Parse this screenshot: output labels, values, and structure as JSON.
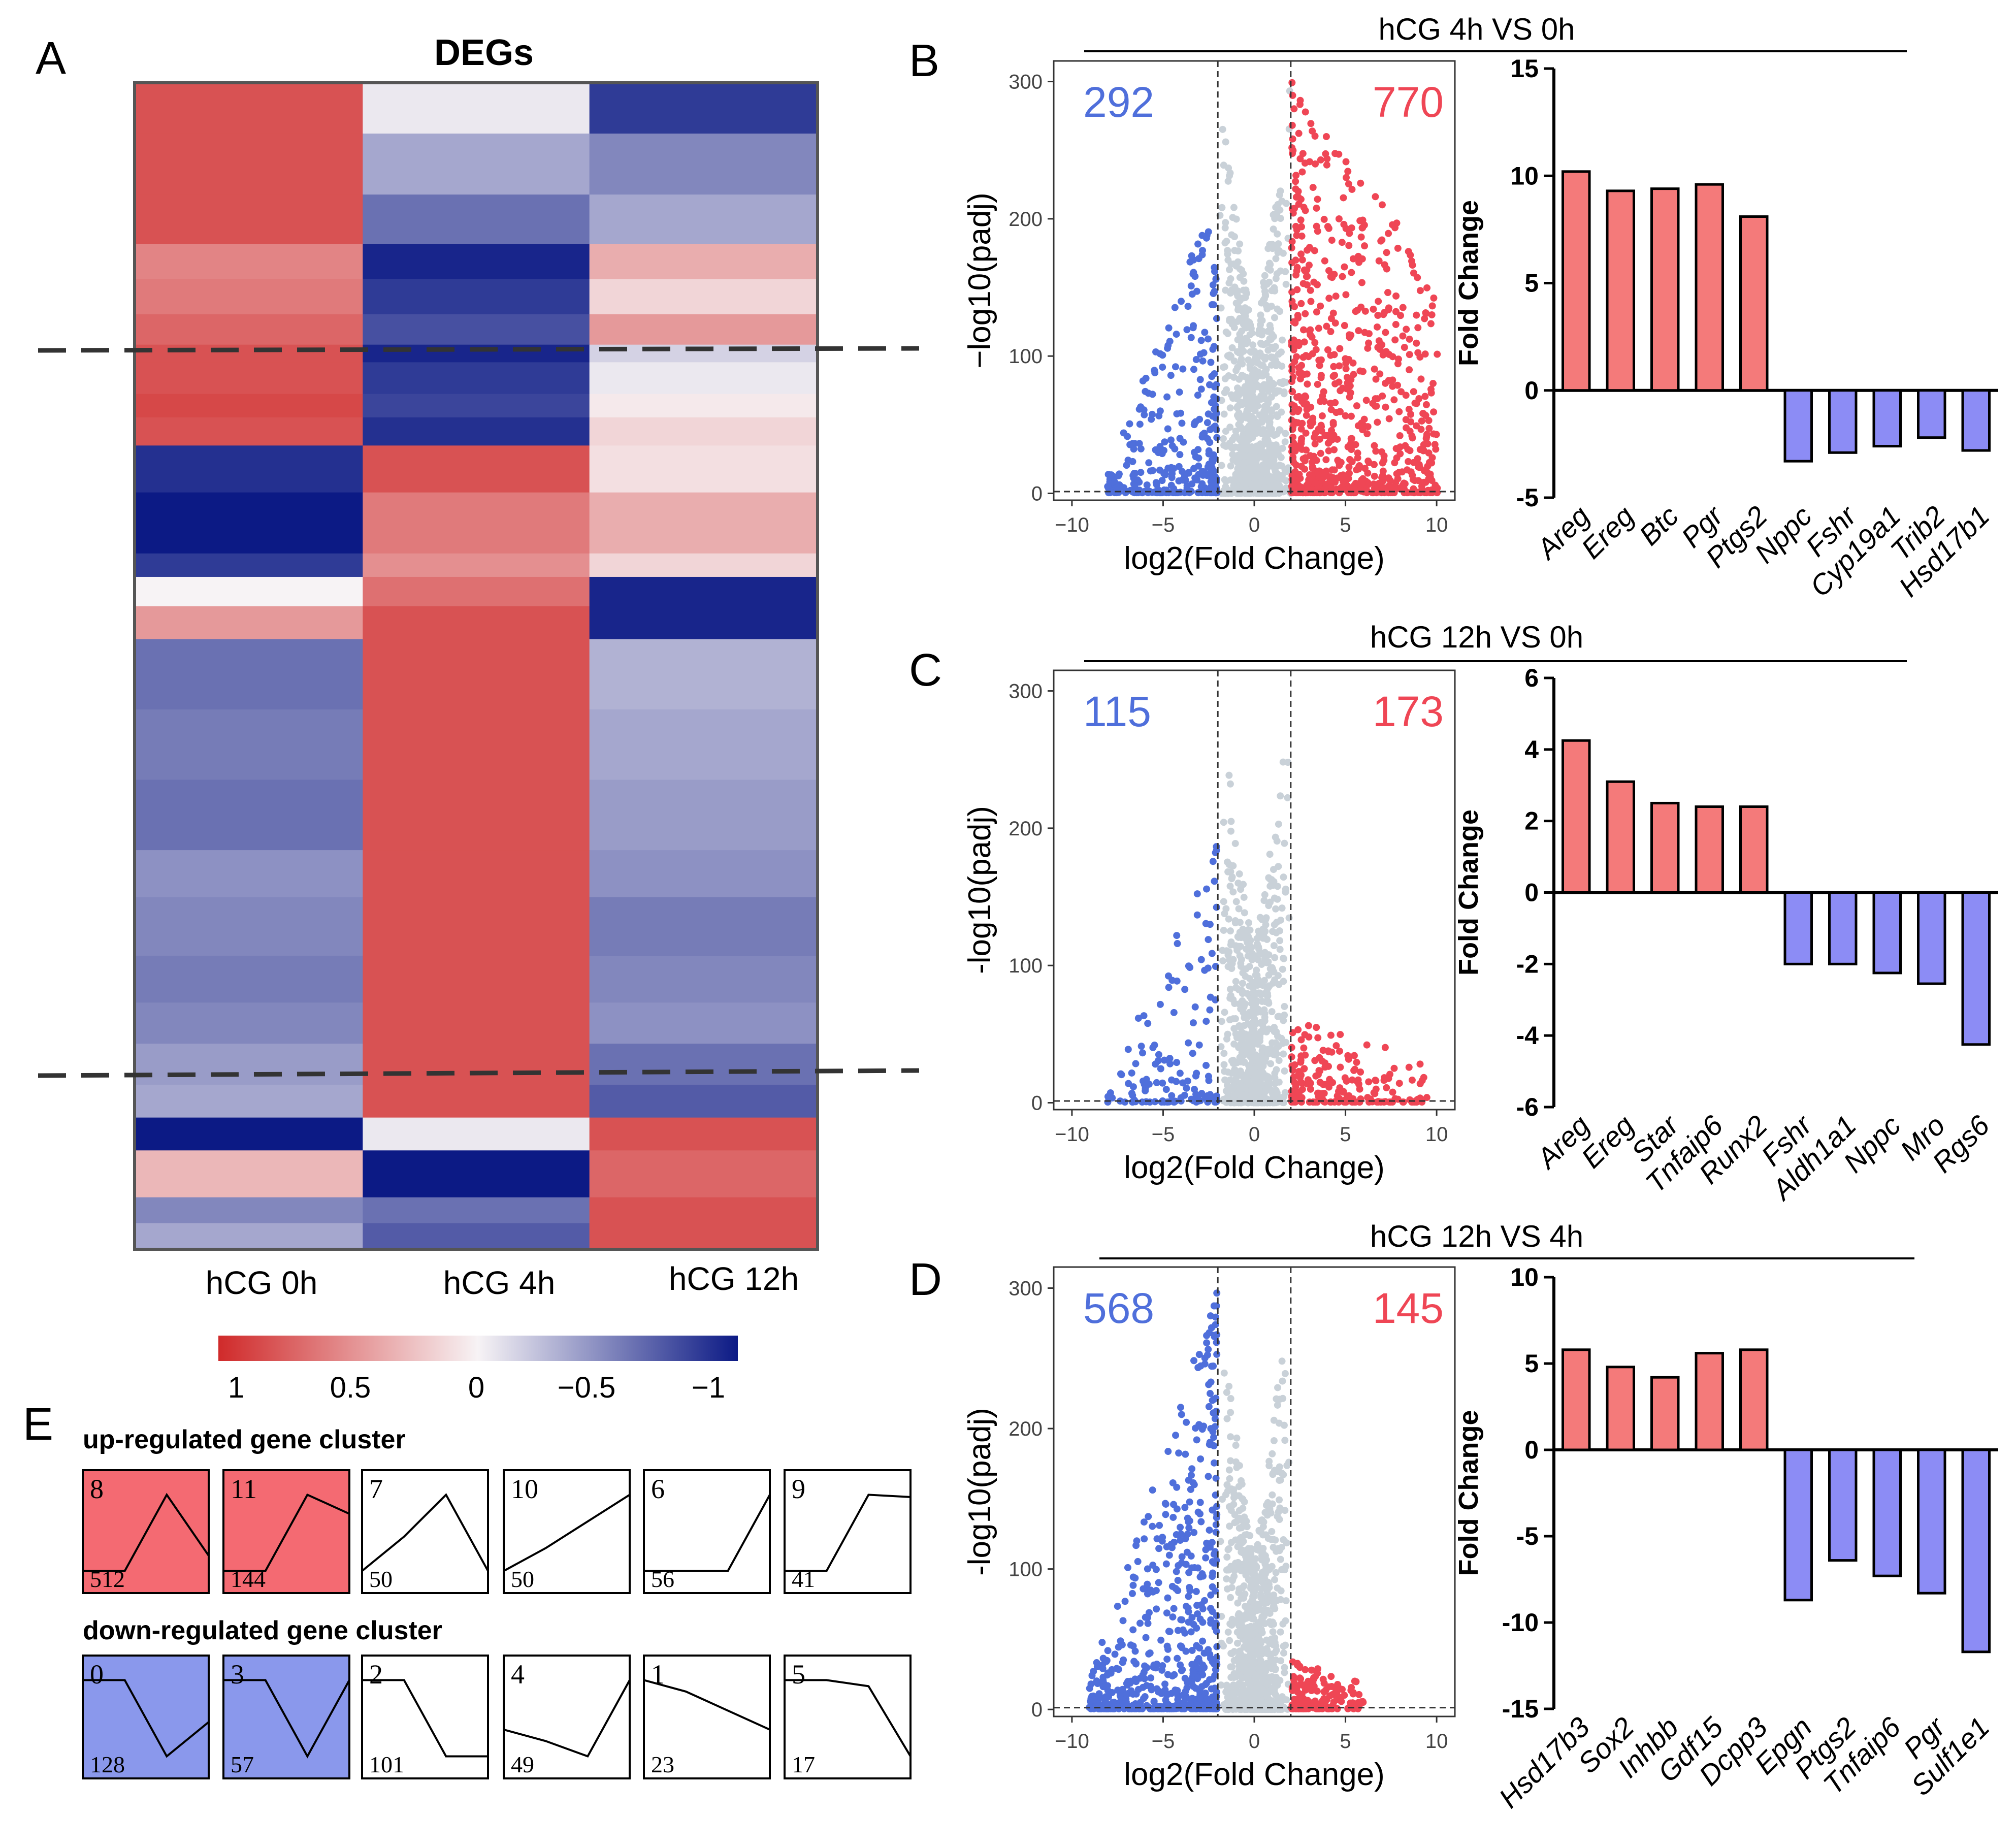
{
  "colors": {
    "red": "#d02a2a",
    "blue": "#0c1a85",
    "white": "#f7f3f5",
    "bar_up": "#f47a7a",
    "bar_down": "#8c8cf5",
    "vol_up": "#ef4655",
    "vol_down": "#4f6fdb",
    "vol_ns": "#c9d1d8",
    "cluster_up": "#f46a72",
    "cluster_down": "#8a98ec"
  },
  "panel_a": {
    "letter": "A",
    "title": "DEGs",
    "columns": [
      "hCG 0h",
      "hCG 4h",
      "hCG 12h"
    ],
    "legend": {
      "ticks": [
        "1",
        "0.5",
        "0",
        "−0.5",
        "−1"
      ]
    },
    "heatmap": [
      {
        "span": 0.042,
        "values": [
          0.8,
          -0.05,
          -0.85
        ]
      },
      {
        "span": 0.052,
        "values": [
          0.8,
          -0.35,
          -0.5
        ]
      },
      {
        "span": 0.042,
        "values": [
          0.8,
          -0.6,
          -0.35
        ]
      },
      {
        "span": 0.03,
        "values": [
          0.55,
          -0.95,
          0.35
        ]
      },
      {
        "span": 0.03,
        "values": [
          0.6,
          -0.85,
          0.15
        ]
      },
      {
        "span": 0.026,
        "values": [
          0.7,
          -0.75,
          0.45
        ]
      },
      {
        "span": 0.015,
        "values": [
          0.8,
          -0.95,
          -0.15
        ]
      },
      {
        "span": 0.027,
        "values": [
          0.8,
          -0.85,
          -0.05
        ]
      },
      {
        "span": 0.02,
        "values": [
          0.85,
          -0.8,
          0.05
        ]
      },
      {
        "span": 0.024,
        "values": [
          0.8,
          -0.9,
          0.15
        ]
      },
      {
        "span": 0.04,
        "values": [
          -0.9,
          0.8,
          0.1
        ]
      },
      {
        "span": 0.052,
        "values": [
          -1.0,
          0.6,
          0.35
        ]
      },
      {
        "span": 0.02,
        "values": [
          -0.85,
          0.5,
          0.15
        ]
      },
      {
        "span": 0.025,
        "values": [
          0.0,
          0.65,
          -0.95
        ]
      },
      {
        "span": 0.028,
        "values": [
          0.45,
          0.8,
          -0.95
        ]
      },
      {
        "span": 0.06,
        "values": [
          -0.6,
          0.8,
          -0.3
        ]
      },
      {
        "span": 0.06,
        "values": [
          -0.55,
          0.8,
          -0.35
        ]
      },
      {
        "span": 0.06,
        "values": [
          -0.6,
          0.8,
          -0.4
        ]
      },
      {
        "span": 0.04,
        "values": [
          -0.45,
          0.8,
          -0.45
        ]
      },
      {
        "span": 0.05,
        "values": [
          -0.5,
          0.8,
          -0.55
        ]
      },
      {
        "span": 0.04,
        "values": [
          -0.55,
          0.8,
          -0.5
        ]
      },
      {
        "span": 0.035,
        "values": [
          -0.5,
          0.8,
          -0.45
        ]
      },
      {
        "span": 0.035,
        "values": [
          -0.4,
          0.8,
          -0.6
        ]
      },
      {
        "span": 0.028,
        "values": [
          -0.35,
          0.8,
          -0.7
        ]
      },
      {
        "span": 0.028,
        "values": [
          -1.0,
          -0.05,
          0.8
        ]
      },
      {
        "span": 0.04,
        "values": [
          0.3,
          -1.0,
          0.7
        ]
      },
      {
        "span": 0.022,
        "values": [
          -0.5,
          -0.6,
          0.8
        ]
      },
      {
        "span": 0.021,
        "values": [
          -0.35,
          -0.7,
          0.8
        ]
      }
    ]
  },
  "comparisons": [
    {
      "letter": "B",
      "title": "hCG 4h VS 0h",
      "volcano": {
        "down_count": "292",
        "up_count": "770",
        "xlabel": "log2(Fold Change)",
        "ylabel": "−log10(padj)",
        "x_ticks": [
          "−10",
          "−5",
          "0",
          "5",
          "10"
        ],
        "y_ticks": [
          "0",
          "100",
          "200",
          "300"
        ]
      },
      "bars": {
        "ylabel": "Fold Change",
        "y_ticks": [
          "-5",
          "0",
          "5",
          "10",
          "15"
        ],
        "ylim": [
          -5,
          15
        ],
        "genes": [
          "Areg",
          "Ereg",
          "Btc",
          "Pgr",
          "Ptgs2",
          "Nppc",
          "Fshr",
          "Cyp19a1",
          "Trib2",
          "Hsd17b1"
        ],
        "values": [
          10.2,
          9.3,
          9.4,
          9.6,
          8.1,
          -3.3,
          -2.9,
          -2.6,
          -2.2,
          -2.8
        ]
      }
    },
    {
      "letter": "C",
      "title": "hCG 12h VS 0h",
      "volcano": {
        "down_count": "115",
        "up_count": "173",
        "xlabel": "log2(Fold Change)",
        "ylabel": "-log10(padj)",
        "x_ticks": [
          "−10",
          "−5",
          "0",
          "5",
          "10"
        ],
        "y_ticks": [
          "0",
          "100",
          "200",
          "300"
        ]
      },
      "bars": {
        "ylabel": "Fold Change",
        "y_ticks": [
          "-6",
          "-4",
          "-2",
          "0",
          "2",
          "4",
          "6"
        ],
        "ylim": [
          -6,
          6
        ],
        "genes": [
          "Areg",
          "Ereg",
          "Star",
          "Tnfaip6",
          "Runx2",
          "Fshr",
          "Aldh1a1",
          "Nppc",
          "Mro",
          "Rgs6"
        ],
        "values": [
          4.25,
          3.1,
          2.5,
          2.4,
          2.4,
          -2.0,
          -2.0,
          -2.25,
          -2.55,
          -4.25
        ]
      }
    },
    {
      "letter": "D",
      "title": "hCG 12h VS 4h",
      "volcano": {
        "down_count": "568",
        "up_count": "145",
        "xlabel": "log2(Fold Change)",
        "ylabel": "-log10(padj)",
        "x_ticks": [
          "−10",
          "−5",
          "0",
          "5",
          "10"
        ],
        "y_ticks": [
          "0",
          "100",
          "200",
          "300"
        ]
      },
      "bars": {
        "ylabel": "Fold Change",
        "y_ticks": [
          "-15",
          "-10",
          "-5",
          "0",
          "5",
          "10"
        ],
        "ylim": [
          -15,
          10
        ],
        "genes": [
          "Hsd17b3",
          "Sox2",
          "Inhbb",
          "Gdf15",
          "Dcpp3",
          "Epgn",
          "Ptgs2",
          "Tnfaip6",
          "Pgr",
          "Sulf1e1"
        ],
        "values": [
          5.8,
          4.8,
          4.2,
          5.6,
          5.8,
          -8.7,
          -6.4,
          -7.3,
          -8.3,
          -11.7
        ]
      }
    }
  ],
  "panel_e": {
    "letter": "E",
    "up_title": "up-regulated gene cluster",
    "down_title": "down-regulated gene cluster",
    "up": [
      {
        "id": "8",
        "count": "512",
        "profile": [
          0.0,
          0.0,
          1.0,
          0.2
        ],
        "filled": true
      },
      {
        "id": "11",
        "count": "144",
        "profile": [
          0.0,
          0.0,
          1.0,
          0.75
        ],
        "filled": true
      },
      {
        "id": "7",
        "count": "50",
        "profile": [
          0.0,
          0.45,
          1.0,
          0.0
        ],
        "filled": false
      },
      {
        "id": "10",
        "count": "50",
        "profile": [
          0.0,
          0.3,
          0.65,
          1.0
        ],
        "filled": false
      },
      {
        "id": "6",
        "count": "56",
        "profile": [
          0.0,
          0.0,
          0.0,
          1.0
        ],
        "filled": false
      },
      {
        "id": "9",
        "count": "41",
        "profile": [
          0.0,
          0.0,
          1.0,
          0.97
        ],
        "filled": false
      }
    ],
    "down": [
      {
        "id": "0",
        "count": "128",
        "profile": [
          1.0,
          1.0,
          0.0,
          0.45
        ],
        "filled": true
      },
      {
        "id": "3",
        "count": "57",
        "profile": [
          1.0,
          1.0,
          0.0,
          1.0
        ],
        "filled": true
      },
      {
        "id": "2",
        "count": "101",
        "profile": [
          1.0,
          1.0,
          0.0,
          0.0
        ],
        "filled": false
      },
      {
        "id": "4",
        "count": "49",
        "profile": [
          0.35,
          0.2,
          0.0,
          1.0
        ],
        "filled": false
      },
      {
        "id": "1",
        "count": "23",
        "profile": [
          1.0,
          0.85,
          0.6,
          0.35
        ],
        "filled": false
      },
      {
        "id": "5",
        "count": "17",
        "profile": [
          1.0,
          1.0,
          0.92,
          0.0
        ],
        "filled": false
      }
    ]
  },
  "chart_data": [
    {
      "type": "heatmap",
      "title": "DEGs",
      "columns": [
        "hCG 0h",
        "hCG 4h",
        "hCG 12h"
      ],
      "color_scale": [
        1,
        0.5,
        0,
        -0.5,
        -1
      ]
    },
    {
      "type": "scatter",
      "title": "hCG 4h VS 0h",
      "xlabel": "log2(Fold Change)",
      "ylabel": "−log10(padj)",
      "xlim": [
        -11,
        11
      ],
      "ylim": [
        -5,
        315
      ],
      "down_count": 292,
      "up_count": 770,
      "thresholds": [
        -2,
        2
      ]
    },
    {
      "type": "bar",
      "title": "hCG 4h VS 0h",
      "ylabel": "Fold Change",
      "ylim": [
        -5,
        15
      ],
      "categories": [
        "Areg",
        "Ereg",
        "Btc",
        "Pgr",
        "Ptgs2",
        "Nppc",
        "Fshr",
        "Cyp19a1",
        "Trib2",
        "Hsd17b1"
      ],
      "values": [
        10.2,
        9.3,
        9.4,
        9.6,
        8.1,
        -3.3,
        -2.9,
        -2.6,
        -2.2,
        -2.8
      ]
    },
    {
      "type": "scatter",
      "title": "hCG 12h VS 0h",
      "xlabel": "log2(Fold Change)",
      "ylabel": "-log10(padj)",
      "xlim": [
        -11,
        11
      ],
      "ylim": [
        -5,
        315
      ],
      "down_count": 115,
      "up_count": 173,
      "thresholds": [
        -2,
        2
      ]
    },
    {
      "type": "bar",
      "title": "hCG 12h VS 0h",
      "ylabel": "Fold Change",
      "ylim": [
        -6,
        6
      ],
      "categories": [
        "Areg",
        "Ereg",
        "Star",
        "Tnfaip6",
        "Runx2",
        "Fshr",
        "Aldh1a1",
        "Nppc",
        "Mro",
        "Rgs6"
      ],
      "values": [
        4.25,
        3.1,
        2.5,
        2.4,
        2.4,
        -2.0,
        -2.0,
        -2.25,
        -2.55,
        -4.25
      ]
    },
    {
      "type": "scatter",
      "title": "hCG 12h VS 4h",
      "xlabel": "log2(Fold Change)",
      "ylabel": "-log10(padj)",
      "xlim": [
        -11,
        11
      ],
      "ylim": [
        -5,
        315
      ],
      "down_count": 568,
      "up_count": 145,
      "thresholds": [
        -2,
        2
      ]
    },
    {
      "type": "bar",
      "title": "hCG 12h VS 4h",
      "ylabel": "Fold Change",
      "ylim": [
        -15,
        10
      ],
      "categories": [
        "Hsd17b3",
        "Sox2",
        "Inhbb",
        "Gdf15",
        "Dcpp3",
        "Epgn",
        "Ptgs2",
        "Tnfaip6",
        "Pgr",
        "Sulf1e1"
      ],
      "values": [
        5.8,
        4.8,
        4.2,
        5.6,
        5.8,
        -8.7,
        -6.4,
        -7.3,
        -8.3,
        -11.7
      ]
    }
  ]
}
